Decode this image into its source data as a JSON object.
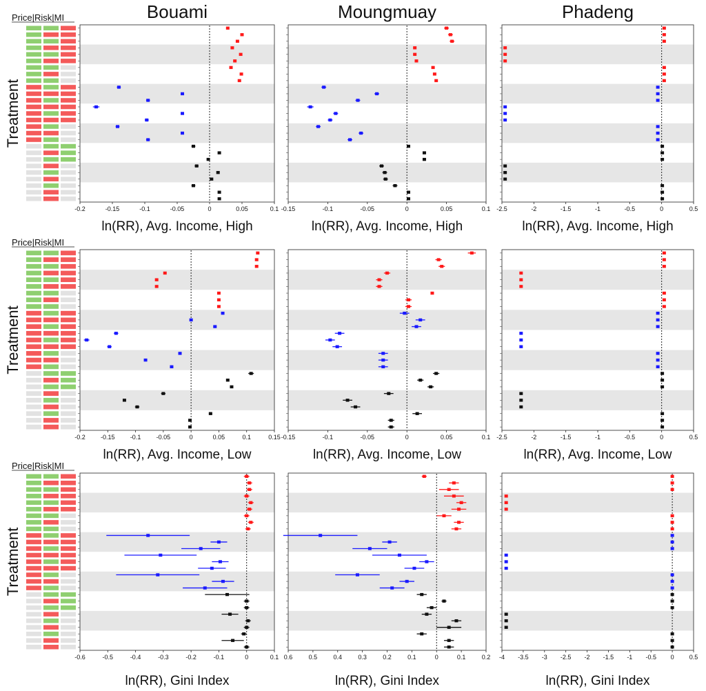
{
  "colors": {
    "green": "#8fcf70",
    "red": "#f45a5a",
    "gray": "#e2e2e2",
    "band": "#e6e6e6",
    "s_red": "#ff1a1a",
    "s_blue": "#1a1aff",
    "s_black": "#111111"
  },
  "legend": {
    "header": "Price|Risk|MI",
    "rows": [
      [
        "G",
        "G",
        "R"
      ],
      [
        "G",
        "R",
        "R"
      ],
      [
        "G",
        "G",
        "R"
      ],
      [
        "G",
        "R",
        "R"
      ],
      [
        "G",
        "G",
        "R"
      ],
      [
        "G",
        "R",
        "R"
      ],
      [
        "G",
        "G",
        "N"
      ],
      [
        "G",
        "R",
        "N"
      ],
      [
        "G",
        "G",
        "N"
      ],
      [
        "R",
        "G",
        "R"
      ],
      [
        "R",
        "R",
        "R"
      ],
      [
        "R",
        "G",
        "R"
      ],
      [
        "R",
        "R",
        "R"
      ],
      [
        "R",
        "G",
        "R"
      ],
      [
        "R",
        "R",
        "R"
      ],
      [
        "R",
        "G",
        "N"
      ],
      [
        "R",
        "R",
        "N"
      ],
      [
        "R",
        "G",
        "N"
      ],
      [
        "N",
        "G",
        "G"
      ],
      [
        "N",
        "R",
        "G"
      ],
      [
        "N",
        "G",
        "G"
      ],
      [
        "N",
        "R",
        "N"
      ],
      [
        "N",
        "G",
        "N"
      ],
      [
        "N",
        "R",
        "N"
      ],
      [
        "N",
        "G",
        "N"
      ],
      [
        "N",
        "R",
        "N"
      ],
      [
        "N",
        "R",
        "N"
      ]
    ]
  },
  "y_axis_label": "Treatment",
  "columns": [
    "Bouami",
    "Moungmuay",
    "Phadeng"
  ],
  "row_labels": [
    "ln(RR), Avg. Income, High",
    "ln(RR), Avg. Income, Low",
    "ln(RR), Gini Index"
  ],
  "chart_data": [
    {
      "type": "scatter",
      "column": "Bouami",
      "row": 1,
      "xlabel": "ln(RR), Avg. Income, High",
      "xlim": [
        -0.2,
        0.1
      ],
      "ticks": [
        "-0.2",
        "-0.15",
        "-0.1",
        "-0.05",
        "0",
        "0.05",
        "0.1"
      ],
      "values": [
        0.028,
        0.05,
        0.043,
        0.035,
        0.048,
        0.039,
        0.033,
        0.049,
        0.046,
        -0.14,
        -0.042,
        -0.095,
        -0.175,
        -0.042,
        -0.097,
        -0.142,
        -0.042,
        -0.095,
        -0.025,
        0.015,
        -0.002,
        -0.02,
        0.013,
        0.003,
        -0.025,
        0.015,
        0.015
      ],
      "errors": [
        0.002,
        0.002,
        0.002,
        0.002,
        0.002,
        0.002,
        0.002,
        0.002,
        0.002,
        0.003,
        0.002,
        0.003,
        0.005,
        0.002,
        0.003,
        0.003,
        0.002,
        0.003,
        0.003,
        0.002,
        0.002,
        0.003,
        0.002,
        0.002,
        0.003,
        0.002,
        0.002
      ]
    },
    {
      "type": "scatter",
      "column": "Moungmuay",
      "row": 1,
      "xlabel": "ln(RR), Avg. Income, High",
      "xlim": [
        -0.15,
        0.1
      ],
      "ticks": [
        "-0.15",
        "-0.1",
        "-0.05",
        "0",
        "0.05",
        "0.1"
      ],
      "values": [
        0.05,
        0.055,
        0.057,
        0.01,
        0.01,
        0.012,
        0.033,
        0.035,
        0.037,
        -0.105,
        -0.038,
        -0.062,
        -0.122,
        -0.09,
        -0.097,
        -0.112,
        -0.058,
        -0.072,
        0.002,
        0.022,
        0.022,
        -0.032,
        -0.028,
        -0.027,
        -0.015,
        0.002,
        0.002
      ],
      "errors": [
        0.003,
        0.003,
        0.003,
        0.002,
        0.002,
        0.002,
        0.002,
        0.002,
        0.002,
        0.003,
        0.003,
        0.003,
        0.004,
        0.003,
        0.003,
        0.003,
        0.003,
        0.003,
        0.002,
        0.002,
        0.002,
        0.003,
        0.003,
        0.003,
        0.003,
        0.002,
        0.002
      ]
    },
    {
      "type": "scatter",
      "column": "Phadeng",
      "row": 1,
      "xlabel": "ln(RR), Avg. Income, High",
      "xlim": [
        -2.5,
        0.5
      ],
      "ticks": [
        "-2.5",
        "-2",
        "-1.5",
        "-1",
        "-0.5",
        "0",
        "0.5"
      ],
      "values": [
        0.04,
        0.04,
        0.04,
        -2.45,
        -2.45,
        -2.45,
        0.04,
        0.04,
        0.04,
        -0.06,
        -0.06,
        -0.06,
        -2.45,
        -2.45,
        -2.45,
        -0.06,
        -0.06,
        -0.06,
        0.01,
        0.01,
        0.01,
        -2.45,
        -2.45,
        -2.45,
        0.01,
        0.01,
        0.01
      ],
      "errors": [
        0,
        0,
        0,
        0,
        0,
        0,
        0,
        0,
        0,
        0,
        0,
        0,
        0,
        0,
        0,
        0,
        0,
        0,
        0,
        0,
        0,
        0,
        0,
        0,
        0,
        0,
        0
      ]
    },
    {
      "type": "scatter",
      "column": "Bouami",
      "row": 2,
      "xlabel": "ln(RR), Avg. Income, Low",
      "xlim": [
        -0.2,
        0.15
      ],
      "ticks": [
        "-0.2",
        "-0.15",
        "-0.1",
        "-0.05",
        "0",
        "0.05",
        "0.1",
        "0.15"
      ],
      "values": [
        0.12,
        0.118,
        0.118,
        -0.047,
        -0.062,
        -0.062,
        0.05,
        0.05,
        0.05,
        0.057,
        0.0,
        0.043,
        -0.135,
        -0.188,
        -0.147,
        -0.02,
        -0.082,
        -0.035,
        0.108,
        0.066,
        0.073,
        -0.05,
        -0.12,
        -0.097,
        0.035,
        -0.002,
        -0.002
      ],
      "errors": [
        0.002,
        0.002,
        0.002,
        0.002,
        0.002,
        0.002,
        0.002,
        0.002,
        0.002,
        0.003,
        0.002,
        0.003,
        0.004,
        0.005,
        0.004,
        0.003,
        0.002,
        0.003,
        0.005,
        0.002,
        0.002,
        0.004,
        0.002,
        0.004,
        0.003,
        0.002,
        0.002
      ]
    },
    {
      "type": "scatter",
      "column": "Moungmuay",
      "row": 2,
      "xlabel": "ln(RR), Avg. Income, Low",
      "xlim": [
        -0.15,
        0.1
      ],
      "ticks": [
        "-0.15",
        "-0.1",
        "-0.05",
        "0",
        "0.05",
        "0.1"
      ],
      "values": [
        0.082,
        0.04,
        0.044,
        -0.025,
        -0.035,
        -0.035,
        0.032,
        0.002,
        0.002,
        -0.003,
        0.017,
        0.012,
        -0.085,
        -0.097,
        -0.088,
        -0.03,
        -0.03,
        -0.03,
        0.037,
        0.017,
        0.03,
        -0.023,
        -0.075,
        -0.065,
        0.013,
        -0.02,
        -0.02
      ],
      "errors": [
        0.005,
        0.004,
        0.004,
        0.004,
        0.004,
        0.004,
        0.002,
        0.004,
        0.004,
        0.006,
        0.006,
        0.006,
        0.006,
        0.006,
        0.006,
        0.006,
        0.006,
        0.006,
        0.004,
        0.004,
        0.004,
        0.006,
        0.006,
        0.006,
        0.006,
        0.004,
        0.004
      ]
    },
    {
      "type": "scatter",
      "column": "Phadeng",
      "row": 2,
      "xlabel": "ln(RR), Avg. Income, Low",
      "xlim": [
        -2.5,
        0.5
      ],
      "ticks": [
        "-2.5",
        "-2",
        "-1.5",
        "-1",
        "-0.5",
        "0",
        "0.5"
      ],
      "values": [
        0.04,
        0.04,
        0.04,
        -2.2,
        -2.2,
        -2.2,
        0.04,
        0.04,
        0.04,
        -0.06,
        -0.06,
        -0.06,
        -2.2,
        -2.2,
        -2.2,
        -0.06,
        -0.06,
        -0.06,
        0.01,
        0.01,
        0.01,
        -2.2,
        -2.2,
        -2.2,
        0.01,
        0.01,
        0.01
      ],
      "errors": [
        0,
        0,
        0,
        0,
        0,
        0,
        0,
        0,
        0,
        0,
        0,
        0,
        0,
        0,
        0,
        0,
        0,
        0,
        0,
        0,
        0,
        0,
        0,
        0,
        0,
        0,
        0
      ]
    },
    {
      "type": "scatter",
      "column": "Bouami",
      "row": 3,
      "xlabel": "ln(RR), Gini Index",
      "xlim": [
        -0.6,
        0.1
      ],
      "ticks": [
        "-0.6",
        "-0.5",
        "-0.4",
        "-0.3",
        "-0.2",
        "-0.1",
        "0",
        "0.1"
      ],
      "values": [
        0.0,
        0.01,
        0.01,
        0.0,
        0.015,
        0.01,
        0.0,
        0.015,
        0.005,
        -0.355,
        -0.1,
        -0.165,
        -0.31,
        -0.095,
        -0.125,
        -0.32,
        -0.085,
        -0.15,
        -0.07,
        0.0,
        0.0,
        -0.06,
        0.005,
        0.0,
        -0.01,
        -0.05,
        0.0
      ],
      "errors": [
        0.01,
        0.01,
        0.01,
        0.01,
        0.01,
        0.01,
        0.01,
        0.01,
        0.01,
        0.15,
        0.03,
        0.07,
        0.13,
        0.03,
        0.05,
        0.15,
        0.04,
        0.08,
        0.08,
        0.01,
        0.01,
        0.03,
        0.01,
        0.01,
        0.01,
        0.04,
        0.01
      ]
    },
    {
      "type": "scatter",
      "column": "Moungmuay",
      "row": 3,
      "xlabel": "ln(RR), Gini Index",
      "xlim": [
        -0.6,
        0.2
      ],
      "ticks": [
        "0.6",
        "0.5",
        "0.4",
        "0.3",
        "0.2",
        "0.1",
        "0",
        "0.1",
        "0.2"
      ],
      "values": [
        -0.05,
        0.07,
        0.05,
        0.07,
        0.1,
        0.09,
        0.03,
        0.09,
        0.08,
        -0.47,
        -0.19,
        -0.27,
        -0.15,
        -0.04,
        -0.09,
        -0.32,
        -0.12,
        -0.18,
        -0.06,
        0.03,
        -0.02,
        -0.04,
        0.08,
        0.05,
        -0.06,
        0.05,
        0.05
      ],
      "errors": [
        0.01,
        0.02,
        0.04,
        0.04,
        0.02,
        0.03,
        0.03,
        0.02,
        0.02,
        0.15,
        0.03,
        0.07,
        0.11,
        0.03,
        0.04,
        0.09,
        0.03,
        0.05,
        0.02,
        0.01,
        0.02,
        0.02,
        0.02,
        0.05,
        0.02,
        0.02,
        0.02
      ]
    },
    {
      "type": "scatter",
      "column": "Phadeng",
      "row": 3,
      "xlabel": "ln(RR), Gini Index",
      "xlim": [
        -4,
        0.5
      ],
      "ticks": [
        "-4",
        "-3.5",
        "-3",
        "-2.5",
        "-2",
        "-1.5",
        "-1",
        "-0.5",
        "0",
        "0.5"
      ],
      "values": [
        0.0,
        0.0,
        0.0,
        -3.9,
        -3.9,
        -3.9,
        0.0,
        0.0,
        0.0,
        0.0,
        0.0,
        0.0,
        -3.9,
        -3.9,
        -3.9,
        0.0,
        0.0,
        0.0,
        0.0,
        0.0,
        0.0,
        -3.9,
        -3.9,
        -3.9,
        0.0,
        0.0,
        0.0
      ],
      "errors": [
        0,
        0,
        0,
        0,
        0,
        0,
        0,
        0,
        0,
        0,
        0,
        0,
        0,
        0,
        0,
        0,
        0,
        0,
        0,
        0,
        0,
        0,
        0,
        0,
        0,
        0,
        0
      ]
    }
  ]
}
